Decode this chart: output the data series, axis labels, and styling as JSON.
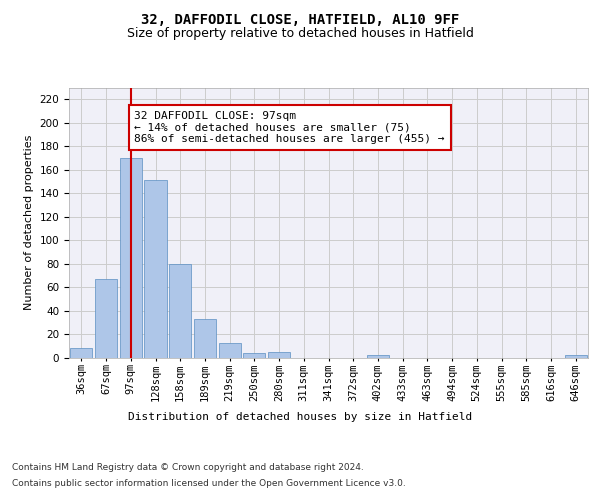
{
  "title_line1": "32, DAFFODIL CLOSE, HATFIELD, AL10 9FF",
  "title_line2": "Size of property relative to detached houses in Hatfield",
  "xlabel": "Distribution of detached houses by size in Hatfield",
  "ylabel": "Number of detached properties",
  "categories": [
    "36sqm",
    "67sqm",
    "97sqm",
    "128sqm",
    "158sqm",
    "189sqm",
    "219sqm",
    "250sqm",
    "280sqm",
    "311sqm",
    "341sqm",
    "372sqm",
    "402sqm",
    "433sqm",
    "463sqm",
    "494sqm",
    "524sqm",
    "555sqm",
    "585sqm",
    "616sqm",
    "646sqm"
  ],
  "values": [
    8,
    67,
    170,
    151,
    80,
    33,
    12,
    4,
    5,
    0,
    0,
    0,
    2,
    0,
    0,
    0,
    0,
    0,
    0,
    0,
    2
  ],
  "bar_color": "#aec6e8",
  "bar_edge_color": "#5a8fc2",
  "highlight_index": 2,
  "highlight_line_color": "#cc0000",
  "annotation_text": "32 DAFFODIL CLOSE: 97sqm\n← 14% of detached houses are smaller (75)\n86% of semi-detached houses are larger (455) →",
  "annotation_box_color": "#ffffff",
  "annotation_box_edge": "#cc0000",
  "ylim": [
    0,
    230
  ],
  "yticks": [
    0,
    20,
    40,
    60,
    80,
    100,
    120,
    140,
    160,
    180,
    200,
    220
  ],
  "grid_color": "#cccccc",
  "background_color": "#f0f0f8",
  "footer_line1": "Contains HM Land Registry data © Crown copyright and database right 2024.",
  "footer_line2": "Contains public sector information licensed under the Open Government Licence v3.0.",
  "title_fontsize": 10,
  "subtitle_fontsize": 9,
  "label_fontsize": 8,
  "tick_fontsize": 7.5,
  "footer_fontsize": 6.5,
  "annotation_fontsize": 8
}
